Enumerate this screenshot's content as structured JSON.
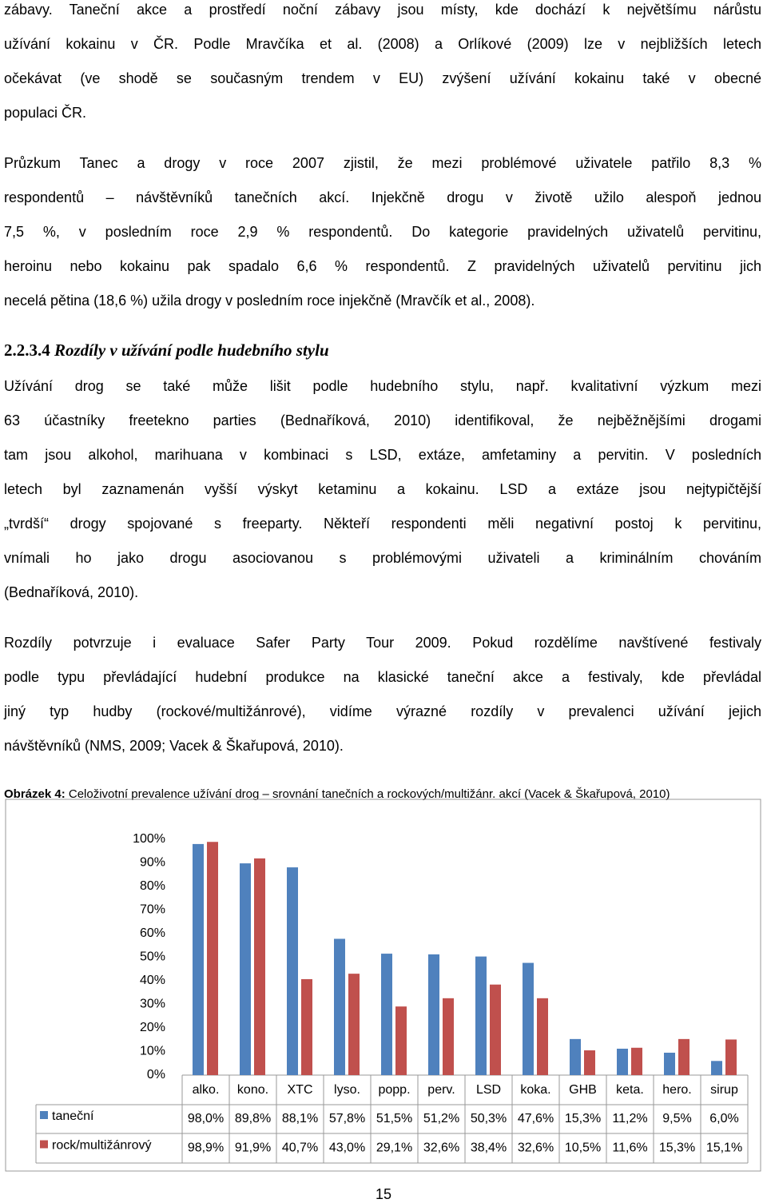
{
  "paragraphs": [
    {
      "lines": [
        "zábavy. Taneční akce a prostředí noční zábavy jsou místy, kde dochází k největšímu nárůstu",
        "užívání kokainu v ČR. Podle Mravčíka et al. (2008) a Orlíkové (2009) lze v nejbližších letech",
        "očekávat (ve shodě se současným trendem v EU) zvýšení užívání kokainu také v obecné",
        "populaci ČR."
      ]
    },
    {
      "lines": [
        "Průzkum Tanec a drogy v roce 2007 zjistil, že mezi problémové uživatele patřilo 8,3 %",
        "respondentů – návštěvníků tanečních akcí. Injekčně drogu v životě užilo alespoň jednou",
        "7,5 %, v posledním roce 2,9 % respondentů. Do kategorie pravidelných uživatelů pervitinu,",
        "heroinu nebo kokainu pak spadalo 6,6 % respondentů. Z pravidelných uživatelů pervitinu jich",
        "necelá pětina (18,6 %) užila drogy v posledním roce injekčně (Mravčík et al., 2008)."
      ]
    },
    {
      "lines": [
        "Užívání drog se také může lišit podle hudebního stylu, např. kvalitativní výzkum mezi",
        "63 účastníky freetekno parties (Bednaříková, 2010) identifikoval, že nejběžnějšími drogami",
        "tam jsou alkohol, marihuana v kombinaci s LSD, extáze, amfetaminy a pervitin. V posledních",
        "letech byl zaznamenán vyšší výskyt ketaminu a kokainu. LSD a extáze jsou nejtypičtější",
        "„tvrdší“ drogy spojované s freeparty. Někteří respondenti měli negativní postoj k pervitinu,",
        "vnímali ho jako drogu asociovanou s problémovými uživateli a kriminálním chováním",
        "(Bednaříková, 2010)."
      ]
    },
    {
      "lines": [
        "Rozdíly potvrzuje i evaluace Safer Party Tour 2009. Pokud rozdělíme navštívené festivaly",
        "podle typu převládající hudební produkce na klasické taneční akce a festivaly, kde převládal",
        "jiný typ hudby (rockové/multižánrové), vidíme výrazné rozdíly v prevalenci užívání jejich",
        "návštěvníků (NMS, 2009; Vacek & Škařupová, 2010)."
      ]
    }
  ],
  "heading": {
    "number": "2.2.3.4",
    "title": "Rozdíly v užívání podle hudebního stylu"
  },
  "caption": {
    "label": "Obrázek 4:",
    "text": "Celoživotní prevalence užívání drog – srovnání tanečních a rockových/multižánr. akcí (Vacek & Škařupová, 2010)"
  },
  "chart_data": {
    "type": "bar",
    "categories": [
      "alko.",
      "kono.",
      "XTC",
      "lyso.",
      "popp.",
      "perv.",
      "LSD",
      "koka.",
      "GHB",
      "keta.",
      "hero.",
      "sirup"
    ],
    "series": [
      {
        "name": "taneční",
        "color": "#4f81bd",
        "values": [
          98.0,
          89.8,
          88.1,
          57.8,
          51.5,
          51.2,
          50.3,
          47.6,
          15.3,
          11.2,
          9.5,
          6.0
        ],
        "value_labels": [
          "98,0%",
          "89,8%",
          "88,1%",
          "57,8%",
          "51,5%",
          "51,2%",
          "50,3%",
          "47,6%",
          "15,3%",
          "11,2%",
          "9,5%",
          "6,0%"
        ]
      },
      {
        "name": "rock/multižánrový",
        "color": "#c0504d",
        "values": [
          98.9,
          91.9,
          40.7,
          43.0,
          29.1,
          32.6,
          38.4,
          32.6,
          10.5,
          11.6,
          15.3,
          15.1
        ],
        "value_labels": [
          "98,9%",
          "91,9%",
          "40,7%",
          "43,0%",
          "29,1%",
          "32,6%",
          "38,4%",
          "32,6%",
          "10,5%",
          "11,6%",
          "15,3%",
          "15,1%"
        ]
      }
    ],
    "ylim": [
      0,
      100
    ],
    "yticks": [
      {
        "value": 0,
        "label": "0%"
      },
      {
        "value": 10,
        "label": "10%"
      },
      {
        "value": 20,
        "label": "20%"
      },
      {
        "value": 30,
        "label": "30%"
      },
      {
        "value": 40,
        "label": "40%"
      },
      {
        "value": 50,
        "label": "50%"
      },
      {
        "value": 60,
        "label": "60%"
      },
      {
        "value": 70,
        "label": "70%"
      },
      {
        "value": 80,
        "label": "80%"
      },
      {
        "value": 90,
        "label": "90%"
      },
      {
        "value": 100,
        "label": "100%"
      }
    ]
  },
  "page_number": "15"
}
